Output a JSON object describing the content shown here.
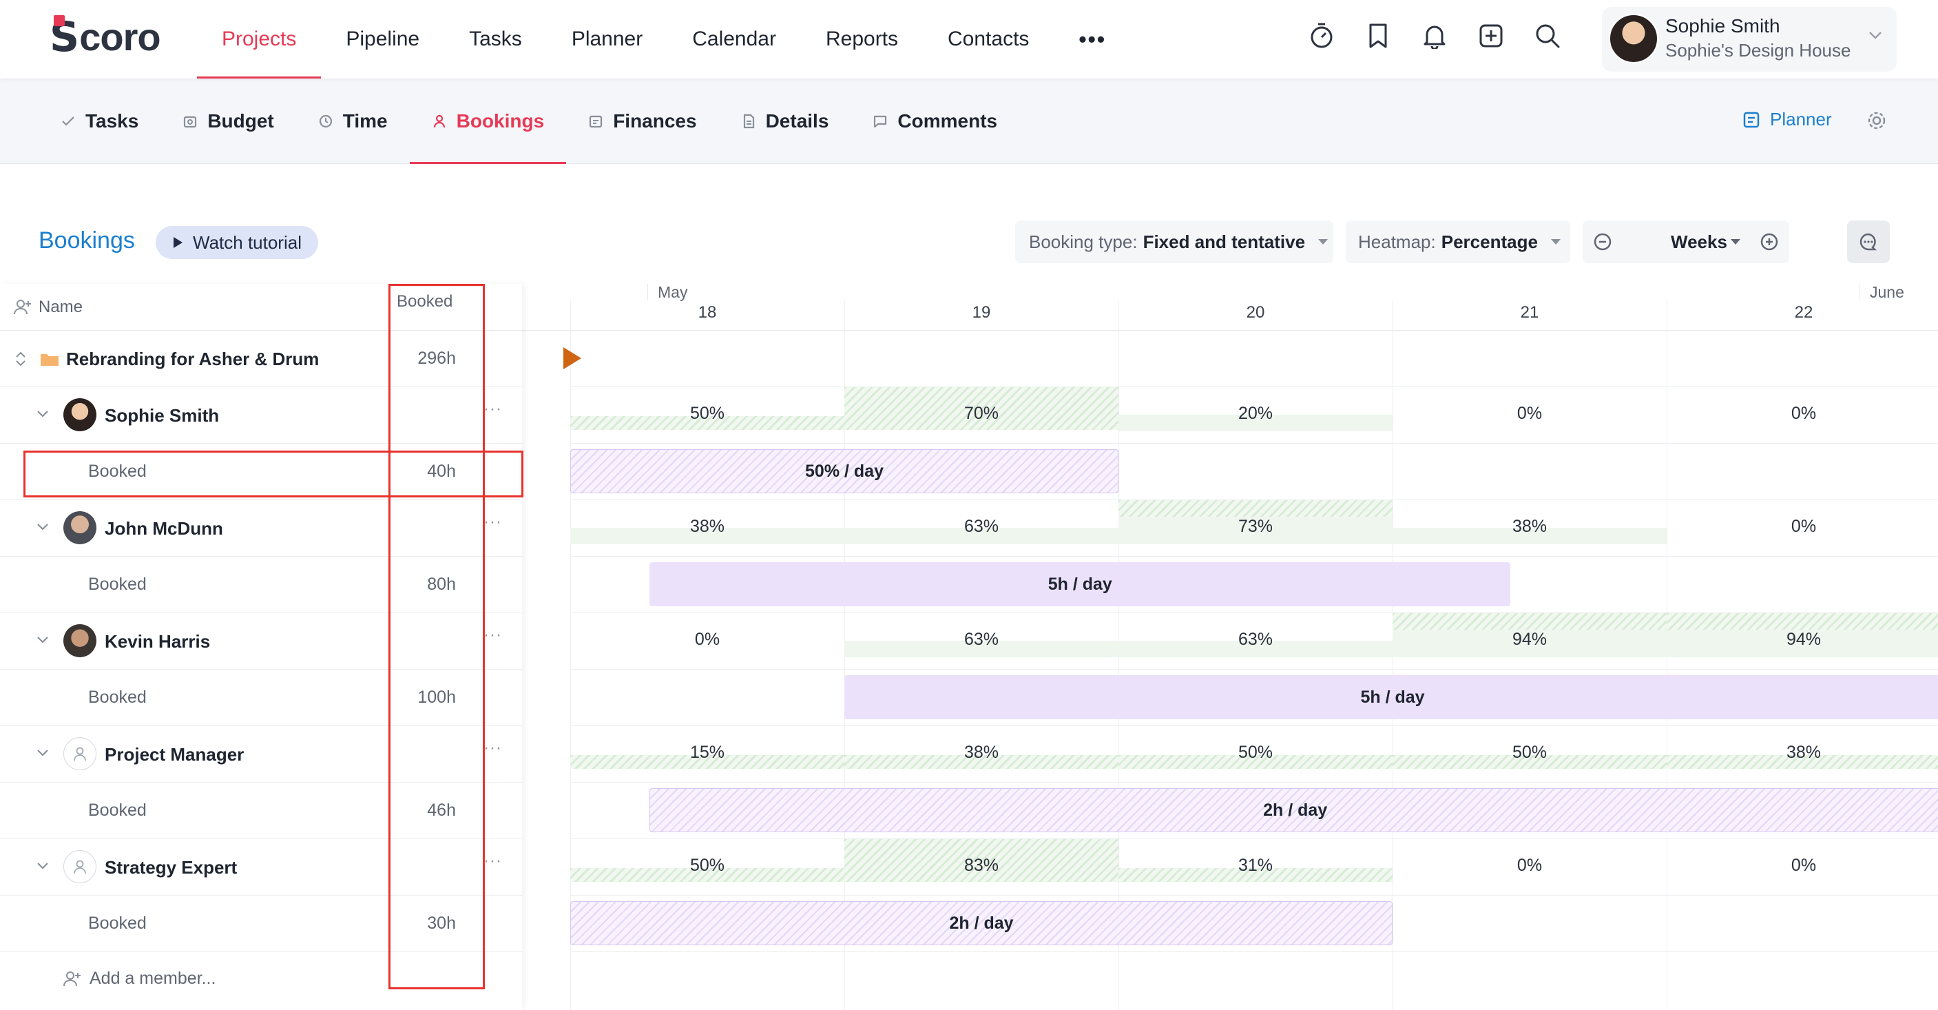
{
  "app": {
    "logo_first": "S",
    "logo_rest": "coro",
    "brand_color": "#e63a56",
    "link_color": "#1a7fcf"
  },
  "topnav": {
    "items": [
      {
        "label": "Projects",
        "active": true
      },
      {
        "label": "Pipeline"
      },
      {
        "label": "Tasks"
      },
      {
        "label": "Planner"
      },
      {
        "label": "Calendar"
      },
      {
        "label": "Reports"
      },
      {
        "label": "Contacts"
      }
    ],
    "more_label": "•••",
    "icons": [
      "stopwatch-icon",
      "bookmark-icon",
      "bell-icon",
      "add-icon",
      "search-icon"
    ],
    "user": {
      "name": "Sophie Smith",
      "company": "Sophie's Design House"
    }
  },
  "subnav": {
    "items": [
      {
        "label": "Tasks",
        "icon": "check-icon"
      },
      {
        "label": "Budget",
        "icon": "budget-icon"
      },
      {
        "label": "Time",
        "icon": "clock-icon"
      },
      {
        "label": "Bookings",
        "icon": "person-icon",
        "active": true
      },
      {
        "label": "Finances",
        "icon": "finances-icon"
      },
      {
        "label": "Details",
        "icon": "document-icon"
      },
      {
        "label": "Comments",
        "icon": "comment-icon"
      }
    ],
    "planner_label": "Planner"
  },
  "page": {
    "title": "Bookings",
    "tutorial_label": "Watch tutorial",
    "booking_type_label": "Booking type:",
    "booking_type_value": "Fixed and tentative",
    "heatmap_label": "Heatmap:",
    "heatmap_value": "Percentage",
    "zoom_value": "Weeks"
  },
  "table": {
    "header_name": "Name",
    "header_booked": "Booked",
    "project": {
      "name": "Rebranding for Asher & Drum",
      "booked": "296h"
    },
    "members": [
      {
        "name": "Sophie Smith",
        "avatar": "sophie",
        "booked_label": "Booked",
        "booked": "40h",
        "heatmap": [
          "50%",
          "70%",
          "20%",
          "0%",
          "0%"
        ],
        "bar_label": "50% / day",
        "bar_type": "tentative"
      },
      {
        "name": "John McDunn",
        "avatar": "john",
        "booked_label": "Booked",
        "booked": "80h",
        "heatmap": [
          "38%",
          "63%",
          "73%",
          "38%",
          "0%"
        ],
        "bar_label": "5h / day",
        "bar_type": "fixed"
      },
      {
        "name": "Kevin Harris",
        "avatar": "kevin",
        "booked_label": "Booked",
        "booked": "100h",
        "heatmap": [
          "0%",
          "63%",
          "63%",
          "94%",
          "94%"
        ],
        "bar_label": "5h / day",
        "bar_type": "fixed"
      },
      {
        "name": "Project Manager",
        "avatar": "role",
        "booked_label": "Booked",
        "booked": "46h",
        "heatmap": [
          "15%",
          "38%",
          "50%",
          "50%",
          "38%"
        ],
        "bar_label": "2h / day",
        "bar_type": "tentative"
      },
      {
        "name": "Strategy Expert",
        "avatar": "role",
        "booked_label": "Booked",
        "booked": "30h",
        "heatmap": [
          "50%",
          "83%",
          "31%",
          "0%",
          "0%"
        ],
        "bar_label": "2h / day",
        "bar_type": "tentative"
      }
    ],
    "add_member_placeholder": "Add a member...",
    "row_menu": "···"
  },
  "timeline": {
    "months": [
      "May",
      "June"
    ],
    "weeks": [
      "18",
      "19",
      "20",
      "21",
      "22"
    ]
  }
}
